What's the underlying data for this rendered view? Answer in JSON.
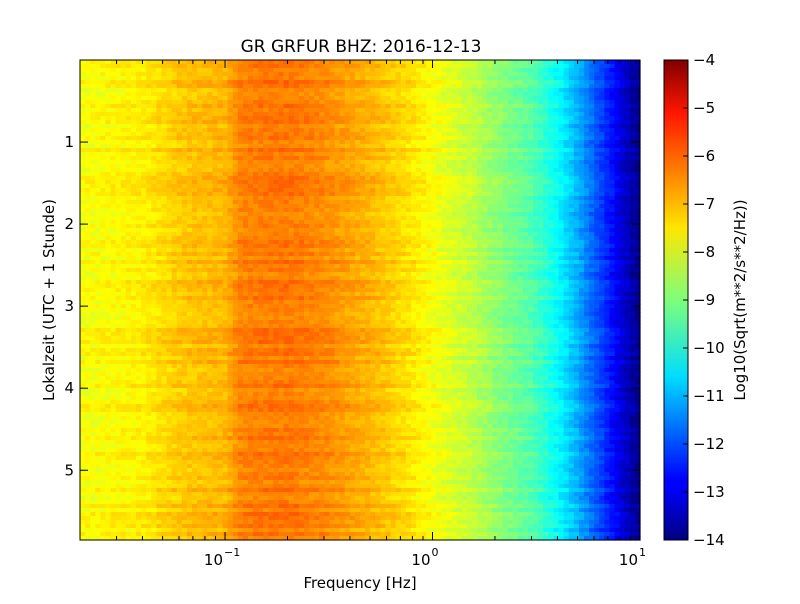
{
  "chart_data": {
    "type": "heatmap",
    "title": "GR GRFUR BHZ: 2016-12-13",
    "xlabel": "Frequency [Hz]",
    "ylabel": "Lokalzeit (UTC + 1 Stunde)",
    "xscale": "log",
    "xlim": [
      0.02,
      10
    ],
    "ylim": [
      5.85,
      0
    ],
    "x_ticks": [
      {
        "value": 0.1,
        "base": "10",
        "exp": "−1"
      },
      {
        "value": 1,
        "base": "10",
        "exp": "0"
      },
      {
        "value": 10,
        "base": "10",
        "exp": "1"
      }
    ],
    "y_ticks": [
      {
        "value": 1,
        "label": "1"
      },
      {
        "value": 2,
        "label": "2"
      },
      {
        "value": 3,
        "label": "3"
      },
      {
        "value": 4,
        "label": "4"
      },
      {
        "value": 5,
        "label": "5"
      }
    ],
    "colorbar": {
      "label": "Log10(Sqrt(m**2/s**2/Hz))",
      "range": [
        -14,
        -4
      ],
      "colormap": "jet",
      "ticks": [
        {
          "value": -4,
          "label": "−4"
        },
        {
          "value": -5,
          "label": "−5"
        },
        {
          "value": -6,
          "label": "−6"
        },
        {
          "value": -7,
          "label": "−7"
        },
        {
          "value": -8,
          "label": "−8"
        },
        {
          "value": -9,
          "label": "−9"
        },
        {
          "value": -10,
          "label": "−10"
        },
        {
          "value": -11,
          "label": "−11"
        },
        {
          "value": -12,
          "label": "−12"
        },
        {
          "value": -13,
          "label": "−13"
        },
        {
          "value": -14,
          "label": "−14"
        }
      ]
    },
    "spectrum_profile": {
      "frequency_hz": [
        0.02,
        0.04,
        0.06,
        0.1,
        0.12,
        0.2,
        0.3,
        0.5,
        0.8,
        1.0,
        1.5,
        2.0,
        3.0,
        4.0,
        5.0,
        6.0,
        7.0,
        8.0,
        9.0,
        10.0
      ],
      "log10_amplitude": [
        -7.8,
        -7.6,
        -7.2,
        -7.0,
        -6.5,
        -6.4,
        -6.6,
        -7.0,
        -7.5,
        -7.8,
        -8.3,
        -8.8,
        -9.4,
        -10.2,
        -11.0,
        -11.8,
        -12.4,
        -13.0,
        -13.5,
        -13.9
      ]
    }
  }
}
